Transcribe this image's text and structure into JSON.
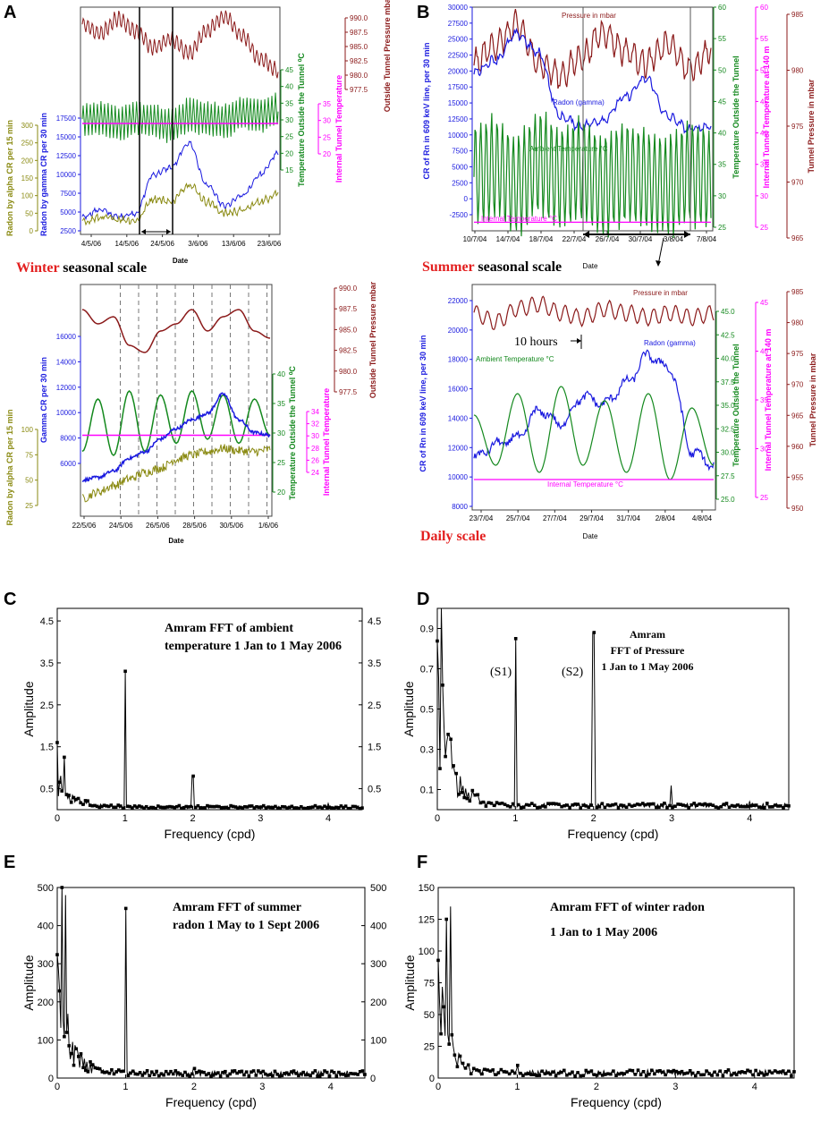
{
  "colors": {
    "pressure": "#8b1a1a",
    "temperature": "#14891e",
    "internal": "#ff00ff",
    "radon_gamma": "#1a1adf",
    "radon_alpha": "#8a8a12",
    "scale_red": "#e32020",
    "fft": "#000000"
  },
  "chart_data": [
    {
      "panel": "A",
      "type": "line",
      "title": "",
      "caption_word": "Winter",
      "caption_rest": " seasonal scale",
      "xlabel": "Date",
      "x_ticks": [
        "4/5/06",
        "14/5/06",
        "24/5/06",
        "3/6/06",
        "13/6/06",
        "23/6/06"
      ],
      "axes": [
        {
          "label": "Radon by alpha CR per 15 min",
          "ticks": [
            "300",
            "250",
            "200",
            "150",
            "100",
            "50",
            "0"
          ],
          "ylim": [
            0,
            300
          ]
        },
        {
          "label": "Radon by gamma CR per 30 min",
          "ticks": [
            "17500",
            "15000",
            "12500",
            "10000",
            "7500",
            "5000",
            "2500"
          ],
          "ylim": [
            2500,
            17500
          ]
        },
        {
          "label": "Temperature Outside the Tunnel ⁰C",
          "ticks": [
            "45",
            "40",
            "35",
            "30",
            "25",
            "20",
            "15"
          ],
          "ylim": [
            15,
            45
          ]
        },
        {
          "label": "Internal Tunnel Temperature",
          "ticks": [
            "35",
            "30",
            "25",
            "20"
          ],
          "ylim": [
            20,
            35
          ]
        },
        {
          "label": "Outside Tunnel Pressure mbar",
          "ticks": [
            "990.0",
            "987.5",
            "985.0",
            "982.5",
            "980.0",
            "977.5"
          ],
          "ylim": [
            977.5,
            990
          ]
        }
      ],
      "series": [
        {
          "name": "Outside pressure",
          "color_key": "pressure",
          "values": [
            988,
            986.5,
            989,
            987,
            984,
            985.5,
            983,
            987,
            989.5,
            986,
            982,
            980
          ]
        },
        {
          "name": "Outside temperature",
          "color_key": "temperature",
          "values": [
            30,
            31,
            29,
            31,
            30,
            28,
            32,
            31,
            30,
            33,
            32,
            34
          ]
        },
        {
          "name": "Internal temperature",
          "color_key": "internal",
          "values": [
            29,
            29,
            29,
            29,
            29,
            29,
            29,
            29,
            29,
            29,
            29,
            29
          ]
        },
        {
          "name": "Radon gamma",
          "color_key": "radon_gamma",
          "values": [
            4500,
            5500,
            4500,
            5000,
            10500,
            11500,
            15000,
            9000,
            6000,
            7500,
            10500,
            13500
          ]
        },
        {
          "name": "Radon alpha",
          "color_key": "radon_alpha",
          "values": [
            30,
            45,
            40,
            35,
            110,
            100,
            160,
            100,
            60,
            70,
            100,
            130
          ]
        }
      ]
    },
    {
      "panel": "A-lower",
      "type": "line",
      "title": "",
      "xlabel": "Date",
      "x_ticks": [
        "22/5/06",
        "24/5/06",
        "26/5/06",
        "28/5/06",
        "30/5/06",
        "1/6/06"
      ],
      "axes": [
        {
          "label": "Radon by alpha CR per 15 min",
          "ticks": [
            "100",
            "75",
            "50",
            "25"
          ],
          "ylim": [
            0,
            100
          ]
        },
        {
          "label": "Gamma CR per 30 min",
          "ticks": [
            "16000",
            "14000",
            "12000",
            "10000",
            "8000",
            "6000"
          ],
          "ylim": [
            5000,
            17000
          ]
        },
        {
          "label": "Temperature Outside the Tunnel ⁰C",
          "ticks": [
            "40",
            "35",
            "30",
            "25",
            "20"
          ],
          "ylim": [
            15,
            45
          ]
        },
        {
          "label": "Internal Tunnel Temperature",
          "ticks": [
            "34",
            "32",
            "30",
            "28",
            "26",
            "24"
          ],
          "ylim": [
            22,
            36
          ]
        },
        {
          "label": "Outside Tunnel Pressure mbar",
          "ticks": [
            "990.0",
            "987.5",
            "985.0",
            "982.5",
            "980.0",
            "977.5"
          ],
          "ylim": [
            977.5,
            990
          ]
        }
      ],
      "series": [
        {
          "name": "Outside pressure",
          "color_key": "pressure",
          "values": [
            988,
            986,
            987,
            983,
            982,
            985,
            986,
            988,
            985,
            987,
            988,
            985,
            984
          ]
        },
        {
          "name": "Outside temperature",
          "color_key": "temperature",
          "values": [
            24,
            37,
            23,
            39,
            24,
            38,
            26,
            39,
            27,
            38,
            26,
            37,
            28
          ]
        },
        {
          "name": "Internal temperature",
          "color_key": "internal",
          "values": [
            28,
            28,
            28,
            28,
            28,
            28,
            28,
            28,
            28,
            28,
            28,
            28,
            28
          ]
        },
        {
          "name": "Gamma radon",
          "color_key": "radon_gamma",
          "values": [
            5800,
            6000,
            6500,
            7500,
            8000,
            9000,
            9800,
            10500,
            11000,
            12500,
            10500,
            9500,
            9300
          ]
        },
        {
          "name": "Alpha radon",
          "color_key": "radon_alpha",
          "values": [
            12,
            18,
            24,
            30,
            36,
            40,
            48,
            52,
            55,
            58,
            56,
            55,
            57
          ]
        }
      ]
    },
    {
      "panel": "B",
      "type": "line",
      "title": "",
      "caption_word": "Summer",
      "caption_rest": " seasonal scale",
      "xlabel": "Date",
      "x_ticks": [
        "10/7/04",
        "14/7/04",
        "18/7/04",
        "22/7/04",
        "26/7/04",
        "30/7/04",
        "3/8/04",
        "7/8/04"
      ],
      "axes": [
        {
          "label": "CR of Rn in 609 keV line, per 30 min",
          "ticks": [
            "30000",
            "27500",
            "25000",
            "22500",
            "20000",
            "17500",
            "15000",
            "12500",
            "10000",
            "7500",
            "5000",
            "2500",
            "0",
            "-2500"
          ],
          "ylim": [
            -2500,
            30000
          ]
        },
        {
          "label": "Temperature Outside the Tunnel",
          "ticks": [
            "60",
            "55",
            "50",
            "45",
            "40",
            "35",
            "30",
            "25"
          ],
          "ylim": [
            25,
            60
          ]
        },
        {
          "label": "Internal Tunnel Temperature at 140 m",
          "ticks": [
            "60",
            "55",
            "50",
            "45",
            "40",
            "35",
            "30",
            "25"
          ],
          "ylim": [
            25,
            60
          ]
        },
        {
          "label": "Tunnel Pressure in mbar",
          "ticks": [
            "985",
            "980",
            "975",
            "970",
            "965"
          ],
          "ylim": [
            965,
            988
          ]
        }
      ],
      "labels": {
        "pressure": "Pressure in mbar",
        "radon": "Radon (gamma)",
        "ambient": "Ambient Temperature °C",
        "internal": "Internal Temperature °C"
      },
      "series": [
        {
          "name": "Pressure",
          "color_key": "pressure",
          "values": [
            980,
            983,
            986,
            980,
            978,
            981,
            985,
            982,
            980,
            983,
            979,
            982
          ]
        },
        {
          "name": "Radon (gamma)",
          "color_key": "radon_gamma",
          "values": [
            20000,
            22000,
            26000,
            23000,
            13000,
            11500,
            12500,
            16000,
            19000,
            13000,
            11000,
            11500
          ]
        },
        {
          "name": "Ambient temperature",
          "color_key": "temperature",
          "values": [
            35,
            36,
            33,
            37,
            34,
            36,
            33,
            35,
            34,
            33,
            35,
            34
          ]
        },
        {
          "name": "Internal temperature",
          "color_key": "internal",
          "values": [
            26.5,
            26.5,
            26.5,
            26.5,
            26.5,
            26.5,
            26.5,
            26.5,
            26.5,
            26.5,
            26.5,
            26.5
          ]
        }
      ]
    },
    {
      "panel": "B-lower",
      "type": "line",
      "title": "",
      "caption": "Daily scale",
      "xlabel": "Date",
      "x_ticks": [
        "23/7/04",
        "25/7/04",
        "27/7/04",
        "29/7/04",
        "31/7/04",
        "2/8/04",
        "4/8/04"
      ],
      "annotation": "10 hours",
      "axes": [
        {
          "label": "CR of Rn in 609 keV line, per 30 min",
          "ticks": [
            "22000",
            "20000",
            "18000",
            "16000",
            "14000",
            "12000",
            "10000",
            "8000"
          ],
          "ylim": [
            8000,
            23000
          ]
        },
        {
          "label": "Temperature Outside the Tunnel",
          "ticks": [
            "45.0",
            "42.5",
            "40.0",
            "37.5",
            "35.0",
            "32.5",
            "30.0",
            "27.5",
            "25.0"
          ],
          "ylim": [
            25,
            46
          ]
        },
        {
          "label": "Internal Tunnel Temperature at 140 m",
          "ticks": [
            "45",
            "40",
            "35",
            "30",
            "25"
          ],
          "ylim": [
            24,
            46
          ]
        },
        {
          "label": "Tunnel Pressure in mbar",
          "ticks": [
            "985",
            "980",
            "975",
            "970",
            "965",
            "960",
            "955",
            "950"
          ],
          "ylim": [
            950,
            987
          ]
        }
      ],
      "labels": {
        "pressure": "Pressure in mbar",
        "radon": "Radon (gamma)",
        "ambient": "Ambient Temperature °C",
        "internal": "Internal Temperature °C"
      },
      "series": [
        {
          "name": "Pressure",
          "color_key": "pressure",
          "values": [
            982,
            980,
            983,
            984,
            982,
            981,
            983,
            982,
            981,
            982,
            981,
            982
          ]
        },
        {
          "name": "Radon (gamma)",
          "color_key": "radon_gamma",
          "values": [
            11500,
            12500,
            13000,
            15000,
            14000,
            16000,
            15500,
            17000,
            19000,
            18000,
            12000,
            11000
          ]
        },
        {
          "name": "Ambient temperature",
          "color_key": "temperature",
          "values": [
            37,
            30,
            40,
            29,
            41,
            30,
            39,
            29,
            40,
            28,
            38,
            30
          ]
        },
        {
          "name": "Internal temperature",
          "color_key": "internal",
          "values": [
            28,
            28,
            28,
            28,
            28,
            28,
            28,
            28,
            28,
            28,
            28,
            28
          ]
        }
      ]
    },
    {
      "panel": "C",
      "type": "line",
      "title_lines": [
        "Amram FFT of ambient",
        "temperature 1 Jan to 1 May 2006"
      ],
      "xlabel": "Frequency (cpd)",
      "ylabel": "Amplitude",
      "xlim": [
        0,
        4.5
      ],
      "ylim": [
        0,
        4.8
      ],
      "x_ticks": [
        "0",
        "1",
        "2",
        "3",
        "4"
      ],
      "y_ticks": [
        "4.5",
        "3.5",
        "2.5",
        "1.5",
        "0.5"
      ],
      "right_ticks": [
        "4.5",
        "3.5",
        "2.5",
        "1.5",
        "0.5"
      ],
      "peaks": [
        {
          "x": 0.0,
          "y": 1.6
        },
        {
          "x": 0.1,
          "y": 1.25
        },
        {
          "x": 1.0,
          "y": 3.3
        },
        {
          "x": 2.0,
          "y": 0.8
        },
        {
          "x": 4.0,
          "y": 0.15
        }
      ],
      "noise": {
        "low_amp": 0.9,
        "decay": 1.6,
        "floor": 0.06
      }
    },
    {
      "panel": "D",
      "type": "line",
      "title_lines": [
        "Amram",
        "FFT of Pressure",
        "1 Jan to 1 May 2006"
      ],
      "xlabel": "Frequency (cpd)",
      "ylabel": "Amplitude",
      "xlim": [
        0,
        4.5
      ],
      "ylim": [
        0,
        1.0
      ],
      "x_ticks": [
        "0",
        "1",
        "2",
        "3",
        "4"
      ],
      "y_ticks": [
        "0.9",
        "0.7",
        "0.5",
        "0.3",
        "0.1"
      ],
      "annotations": [
        "(S1)",
        "(S2)"
      ],
      "peaks": [
        {
          "x": 0.05,
          "y": 1.0
        },
        {
          "x": 1.0,
          "y": 0.85
        },
        {
          "x": 2.0,
          "y": 0.88
        },
        {
          "x": 3.0,
          "y": 0.12
        },
        {
          "x": 4.0,
          "y": 0.04
        }
      ],
      "noise": {
        "low_amp": 0.75,
        "decay": 1.8,
        "floor": 0.02
      }
    },
    {
      "panel": "E",
      "type": "line",
      "title_lines": [
        "Amram FFT of summer",
        "radon 1 May to 1 Sept 2006"
      ],
      "xlabel": "Frequency (cpd)",
      "ylabel": "Amplitude",
      "xlim": [
        0,
        4.5
      ],
      "ylim": [
        0,
        500
      ],
      "x_ticks": [
        "0",
        "1",
        "2",
        "3",
        "4"
      ],
      "y_ticks": [
        "500",
        "400",
        "300",
        "200",
        "100",
        "0"
      ],
      "right_ticks": [
        "500",
        "400",
        "300",
        "200",
        "100",
        "0"
      ],
      "peaks": [
        {
          "x": 0.07,
          "y": 500
        },
        {
          "x": 0.12,
          "y": 480
        },
        {
          "x": 1.0,
          "y": 445
        },
        {
          "x": 2.0,
          "y": 25
        }
      ],
      "noise": {
        "low_amp": 300,
        "decay": 1.7,
        "floor": 12
      }
    },
    {
      "panel": "F",
      "type": "line",
      "title_lines": [
        "Amram FFT of winter radon",
        "1 Jan to 1 May 2006"
      ],
      "xlabel": "Frequency (cpd)",
      "ylabel": "Amplitude",
      "xlim": [
        0,
        4.5
      ],
      "ylim": [
        0,
        150
      ],
      "x_ticks": [
        "0",
        "1",
        "2",
        "3",
        "4"
      ],
      "y_ticks": [
        "150",
        "125",
        "100",
        "75",
        "50",
        "25",
        "0"
      ],
      "peaks": [
        {
          "x": 0.1,
          "y": 125
        },
        {
          "x": 0.15,
          "y": 135
        },
        {
          "x": 1.0,
          "y": 10
        }
      ],
      "noise": {
        "low_amp": 95,
        "decay": 2.4,
        "floor": 4
      }
    }
  ],
  "panel_letters": [
    "A",
    "B",
    "C",
    "D",
    "E",
    "F"
  ]
}
